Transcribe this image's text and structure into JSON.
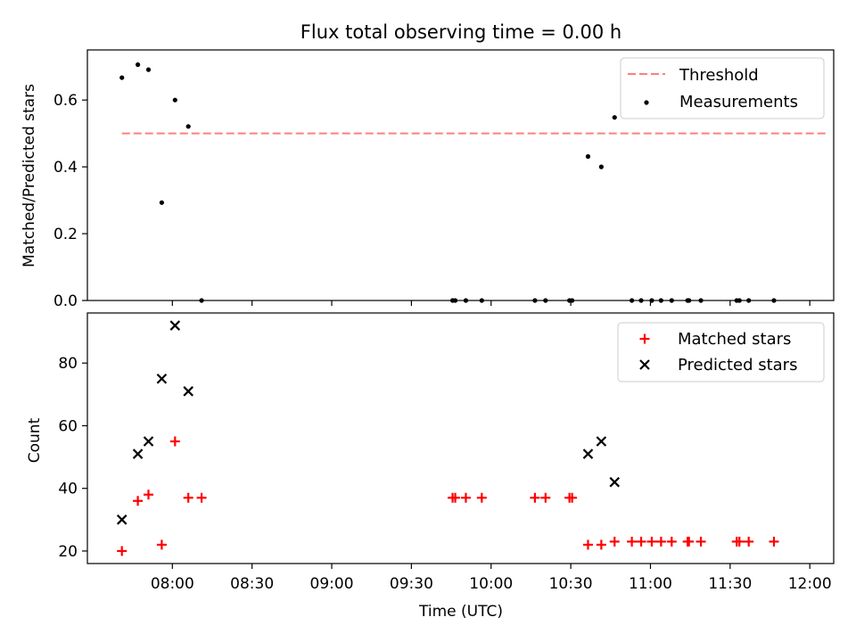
{
  "title": "Flux total observing time = 0.00 h",
  "xlabel": "Time (UTC)",
  "x_ticks": [
    "08:00",
    "08:30",
    "09:00",
    "09:30",
    "10:00",
    "10:30",
    "11:00",
    "11:30",
    "12:00"
  ],
  "x_tick_minutes": [
    480,
    510,
    540,
    570,
    600,
    630,
    660,
    690,
    720
  ],
  "xlim_minutes": [
    448,
    729
  ],
  "colors": {
    "threshold": "#ff7f7f",
    "measurement": "#000000",
    "matched": "#ff0000",
    "predicted": "#000000"
  },
  "chart_data": [
    {
      "type": "scatter",
      "ylabel": "Matched/Predicted stars",
      "ylim": [
        0,
        0.75
      ],
      "y_ticks": [
        "0.0",
        "0.2",
        "0.4",
        "0.6"
      ],
      "y_tick_values": [
        0,
        0.2,
        0.4,
        0.6
      ],
      "legend_position": "top-right",
      "threshold": {
        "name": "Threshold",
        "value": 0.5,
        "x_range": [
          461,
          727
        ]
      },
      "series": [
        {
          "name": "Measurements",
          "x": [
            461,
            467,
            471,
            476,
            481,
            486,
            491,
            585.5,
            586.5,
            590.5,
            596.5,
            616.5,
            620.5,
            629.5,
            630.5,
            636.5,
            641.5,
            646.5,
            653,
            656.5,
            660.5,
            664,
            668,
            674,
            674.5,
            679,
            692.5,
            693.5,
            697,
            706.5
          ],
          "y": [
            0.667,
            0.706,
            0.691,
            0.293,
            0.6,
            0.521,
            0,
            0,
            0,
            0,
            0,
            0,
            0,
            0,
            0,
            0.431,
            0.4,
            0.548,
            0,
            0,
            0,
            0,
            0,
            0,
            0,
            0,
            0,
            0,
            0,
            0
          ]
        }
      ]
    },
    {
      "type": "scatter",
      "ylabel": "Count",
      "ylim": [
        16,
        96
      ],
      "y_ticks": [
        "20",
        "40",
        "60",
        "80"
      ],
      "y_tick_values": [
        20,
        40,
        60,
        80
      ],
      "legend_position": "top-right",
      "series": [
        {
          "name": "Matched stars",
          "marker": "+",
          "x": [
            461,
            467,
            471,
            476,
            481,
            486,
            491,
            585.5,
            586.5,
            590.5,
            596.5,
            616.5,
            620.5,
            629.5,
            630.5,
            636.5,
            641.5,
            646.5,
            653,
            656.5,
            660.5,
            664,
            668,
            674,
            674.5,
            679,
            692.5,
            693.5,
            697,
            706.5
          ],
          "y": [
            20,
            36,
            38,
            22,
            55,
            37,
            37,
            37,
            37,
            37,
            37,
            37,
            37,
            37,
            37,
            22,
            22,
            23,
            23,
            23,
            23,
            23,
            23,
            23,
            23,
            23,
            23,
            23,
            23,
            23
          ]
        },
        {
          "name": "Predicted stars",
          "marker": "x",
          "x": [
            461,
            467,
            471,
            476,
            481,
            486,
            636.5,
            641.5,
            646.5
          ],
          "y": [
            30,
            51,
            55,
            75,
            92,
            71,
            51,
            55,
            42
          ]
        }
      ]
    }
  ]
}
